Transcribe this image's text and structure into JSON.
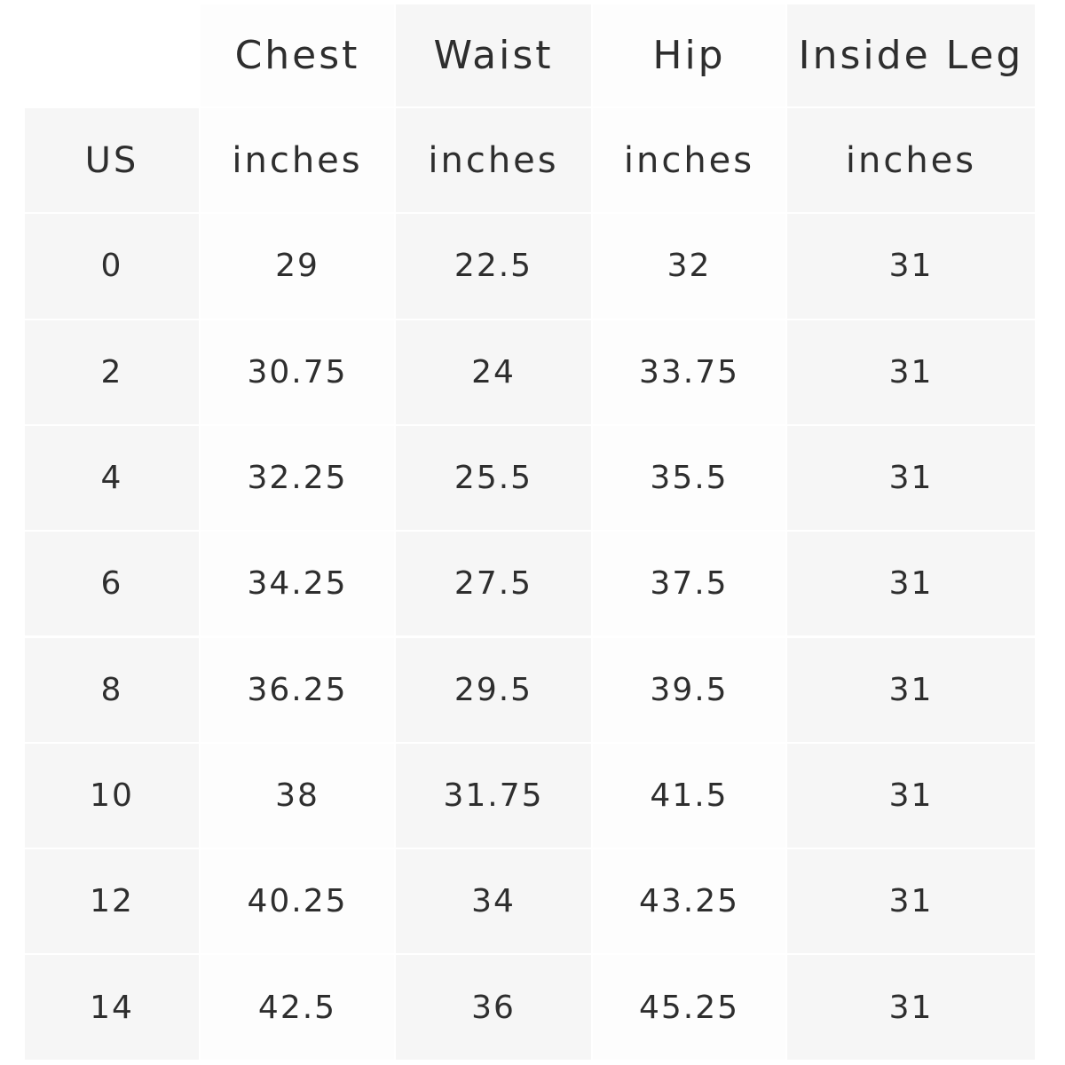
{
  "header": {
    "columns": [
      "Chest",
      "Waist",
      "Hip",
      "Inside Leg"
    ]
  },
  "units": {
    "label": "US",
    "values": [
      "inches",
      "inches",
      "inches",
      "inches"
    ]
  },
  "table": {
    "rows": [
      [
        "0",
        "29",
        "22.5",
        "32",
        "31"
      ],
      [
        "2",
        "30.75",
        "24",
        "33.75",
        "31"
      ],
      [
        "4",
        "32.25",
        "25.5",
        "35.5",
        "31"
      ],
      [
        "6",
        "34.25",
        "27.5",
        "37.5",
        "31"
      ],
      [
        "8",
        "36.25",
        "29.5",
        "39.5",
        "31"
      ],
      [
        "10",
        "38",
        "31.75",
        "41.5",
        "31"
      ],
      [
        "12",
        "40.25",
        "34",
        "43.25",
        "31"
      ],
      [
        "14",
        "42.5",
        "36",
        "45.25",
        "31"
      ]
    ]
  }
}
